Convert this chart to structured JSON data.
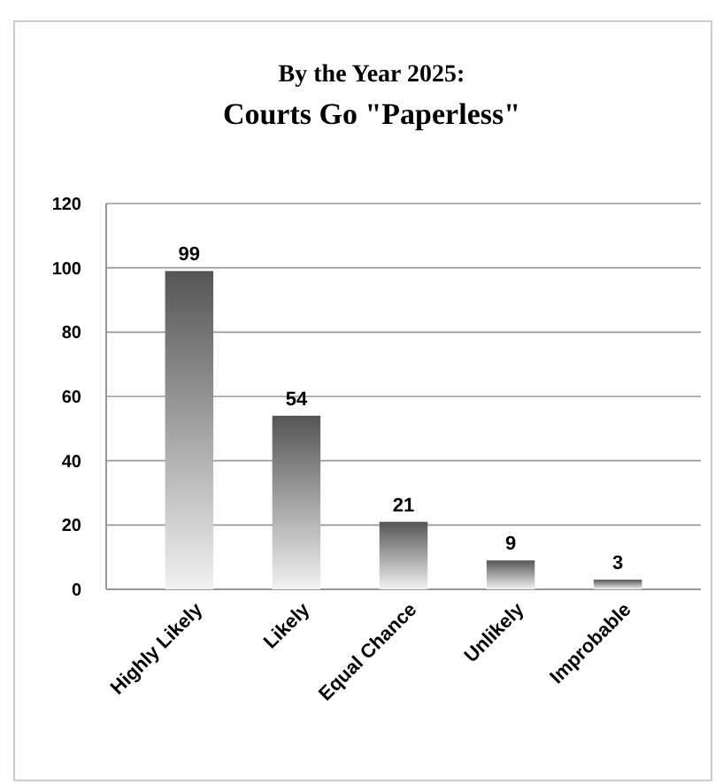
{
  "chart_data": {
    "type": "bar",
    "title": "By the Year 2025:",
    "subtitle": "Courts Go \"Paperless\"",
    "categories": [
      "Highly Likely",
      "Likely",
      "Equal Chance",
      "Unlikely",
      "Improbable"
    ],
    "values": [
      99,
      54,
      21,
      9,
      3
    ],
    "color": "#555555",
    "ylim": [
      0,
      120
    ],
    "yticks": [
      0,
      20,
      40,
      60,
      80,
      100,
      120
    ],
    "grid": "y",
    "data_labels": true
  }
}
